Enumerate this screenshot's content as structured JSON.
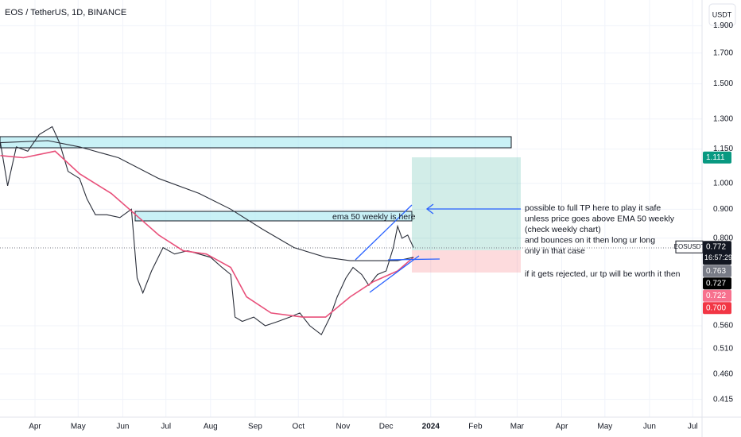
{
  "header": {
    "symbol": "EOS / TetherUS, 1D, BINANCE",
    "currency": "USDT"
  },
  "chart_data": {
    "type": "line",
    "log_scale": true,
    "grid": true,
    "xlim": [
      -24.3,
      463.5
    ],
    "ylim": [
      0.386,
      2.11
    ],
    "xticks": [
      {
        "value": 0,
        "label": "Apr"
      },
      {
        "value": 30,
        "label": "May"
      },
      {
        "value": 61,
        "label": "Jun"
      },
      {
        "value": 91,
        "label": "Jul"
      },
      {
        "value": 122,
        "label": "Aug"
      },
      {
        "value": 153,
        "label": "Sep"
      },
      {
        "value": 183,
        "label": "Oct"
      },
      {
        "value": 214,
        "label": "Nov"
      },
      {
        "value": 244,
        "label": "Dec"
      },
      {
        "value": 275,
        "label": "2024"
      },
      {
        "value": 306,
        "label": "Feb"
      },
      {
        "value": 335,
        "label": "Mar"
      },
      {
        "value": 366,
        "label": "Apr"
      },
      {
        "value": 396,
        "label": "May"
      },
      {
        "value": 427,
        "label": "Jun"
      },
      {
        "value": 457,
        "label": "Jul"
      }
    ],
    "yticks": [
      {
        "value": 1.9,
        "label": "1.900"
      },
      {
        "value": 1.7,
        "label": "1.700"
      },
      {
        "value": 1.5,
        "label": "1.500"
      },
      {
        "value": 1.3,
        "label": "1.300"
      },
      {
        "value": 1.15,
        "label": "1.150"
      },
      {
        "value": 1.0,
        "label": "1.000"
      },
      {
        "value": 0.9,
        "label": "0.900"
      },
      {
        "value": 0.8,
        "label": "0.800"
      },
      {
        "value": 0.56,
        "label": "0.560"
      },
      {
        "value": 0.51,
        "label": "0.510"
      },
      {
        "value": 0.46,
        "label": "0.460"
      },
      {
        "value": 0.415,
        "label": "0.415"
      }
    ],
    "series": [
      {
        "color": "#2a2e39",
        "x": [
          -24,
          -19,
          -13,
          -5,
          3,
          12,
          17,
          23,
          31,
          36,
          42,
          50,
          59,
          67,
          71,
          75,
          81,
          89,
          97,
          106,
          114,
          122,
          130,
          136,
          139,
          144,
          152,
          160,
          169,
          177,
          184,
          191,
          199,
          205,
          210,
          216,
          221,
          227,
          232,
          238,
          244,
          249,
          252,
          255,
          259,
          263
        ],
        "values": [
          1.18,
          0.99,
          1.16,
          1.14,
          1.22,
          1.26,
          1.18,
          1.05,
          1.02,
          0.94,
          0.88,
          0.88,
          0.87,
          0.9,
          0.68,
          0.64,
          0.7,
          0.77,
          0.75,
          0.76,
          0.75,
          0.74,
          0.71,
          0.69,
          0.58,
          0.57,
          0.58,
          0.56,
          0.57,
          0.58,
          0.59,
          0.56,
          0.54,
          0.58,
          0.63,
          0.68,
          0.71,
          0.69,
          0.66,
          0.69,
          0.7,
          0.77,
          0.84,
          0.8,
          0.81,
          0.77
        ]
      },
      {
        "color": "#e8507a",
        "x": [
          -24,
          -8,
          14,
          31,
          53,
          70,
          86,
          103,
          119,
          136,
          147,
          164,
          186,
          202,
          219,
          235,
          252,
          263
        ],
        "values": [
          1.12,
          1.11,
          1.14,
          1.04,
          0.96,
          0.88,
          0.81,
          0.76,
          0.75,
          0.71,
          0.63,
          0.59,
          0.58,
          0.58,
          0.63,
          0.67,
          0.7,
          0.74
        ]
      },
      {
        "color": "#2a2e39",
        "x": [
          -24,
          9,
          31,
          58,
          86,
          114,
          136,
          158,
          180,
          202,
          219,
          235,
          252,
          263
        ],
        "values": [
          1.18,
          1.19,
          1.16,
          1.11,
          1.02,
          0.96,
          0.9,
          0.83,
          0.77,
          0.74,
          0.73,
          0.73,
          0.73,
          0.74
        ]
      }
    ],
    "price_labels": [
      {
        "value": 1.111,
        "label": "1.111",
        "color": "#089981"
      },
      {
        "value": 0.772,
        "label": "0.772",
        "color": "#131722",
        "symbol": "EOSUSDT",
        "countdown": "16:57:29"
      },
      {
        "value": 0.763,
        "label": "0.763",
        "color": "#787b86"
      },
      {
        "value": 0.727,
        "label": "0.727",
        "color": "#000000"
      },
      {
        "value": 0.722,
        "label": "0.722",
        "color": "#f7718e"
      },
      {
        "value": 0.7,
        "label": "0.700",
        "color": "#f23645"
      }
    ]
  },
  "annotations": {
    "ema_note": "ema 50 weekly is here",
    "tp_note": [
      "possible to full TP here to play it safe",
      "unless price goes above EMA 50 weekly",
      "(check weekly chart)",
      "and bounces on it then long ur long",
      "only in that case"
    ],
    "reject_note": "if it gets rejected, ur tp will be worth it then"
  }
}
